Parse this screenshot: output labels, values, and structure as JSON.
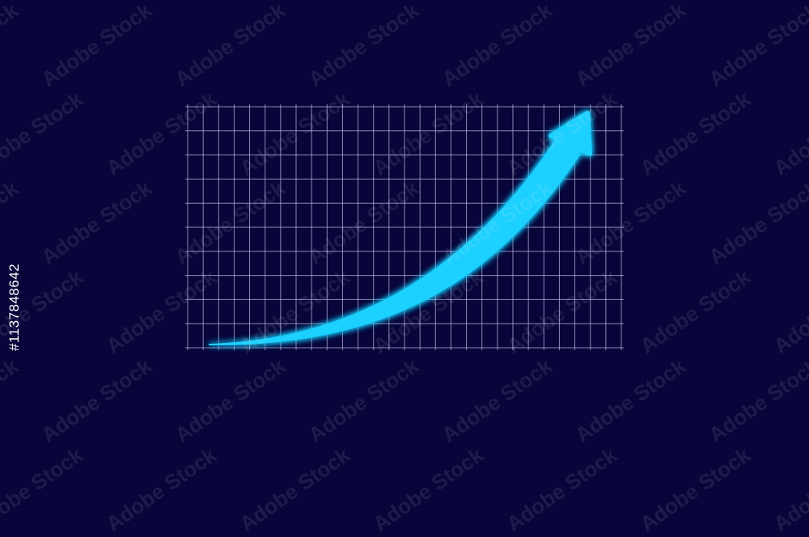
{
  "watermark": {
    "text": "Adobe Stock",
    "stock_id": "#1137848642"
  },
  "colors": {
    "background": "#07053a",
    "grid": "#b8b4e0",
    "arrow": "#1ad0ff",
    "glow": "#0aa8ff"
  },
  "icons": {
    "main": "upward-trend-arrow-icon"
  }
}
